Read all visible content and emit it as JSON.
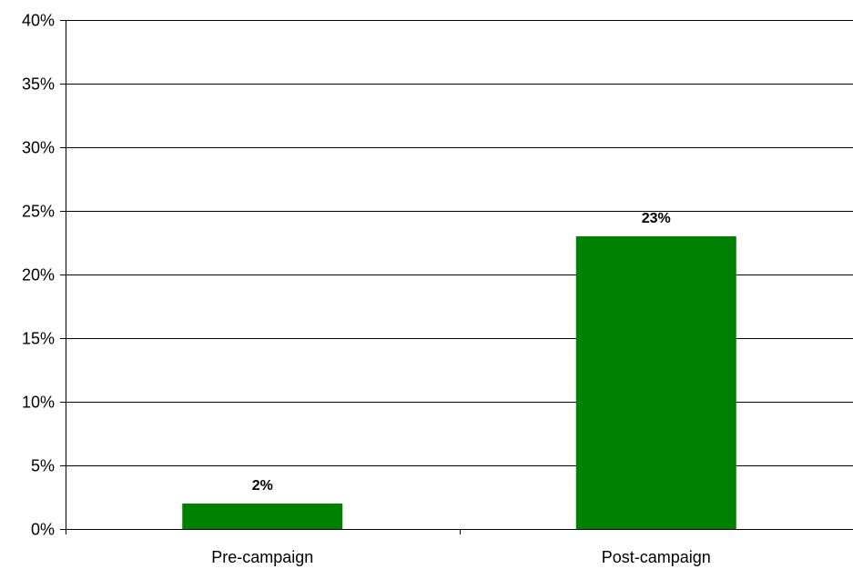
{
  "chart_data": {
    "type": "bar",
    "categories": [
      "Pre-campaign",
      "Post-campaign"
    ],
    "values": [
      2,
      23
    ],
    "data_labels": [
      "2%",
      "23%"
    ],
    "title": "",
    "xlabel": "",
    "ylabel": "",
    "ylim": [
      0,
      40
    ],
    "yticks": [
      0,
      5,
      10,
      15,
      20,
      25,
      30,
      35,
      40
    ],
    "ytick_labels": [
      "0%",
      "5%",
      "10%",
      "15%",
      "20%",
      "25%",
      "30%",
      "35%",
      "40%"
    ],
    "grid": true,
    "legend": "none",
    "bar_color": "#008000"
  }
}
